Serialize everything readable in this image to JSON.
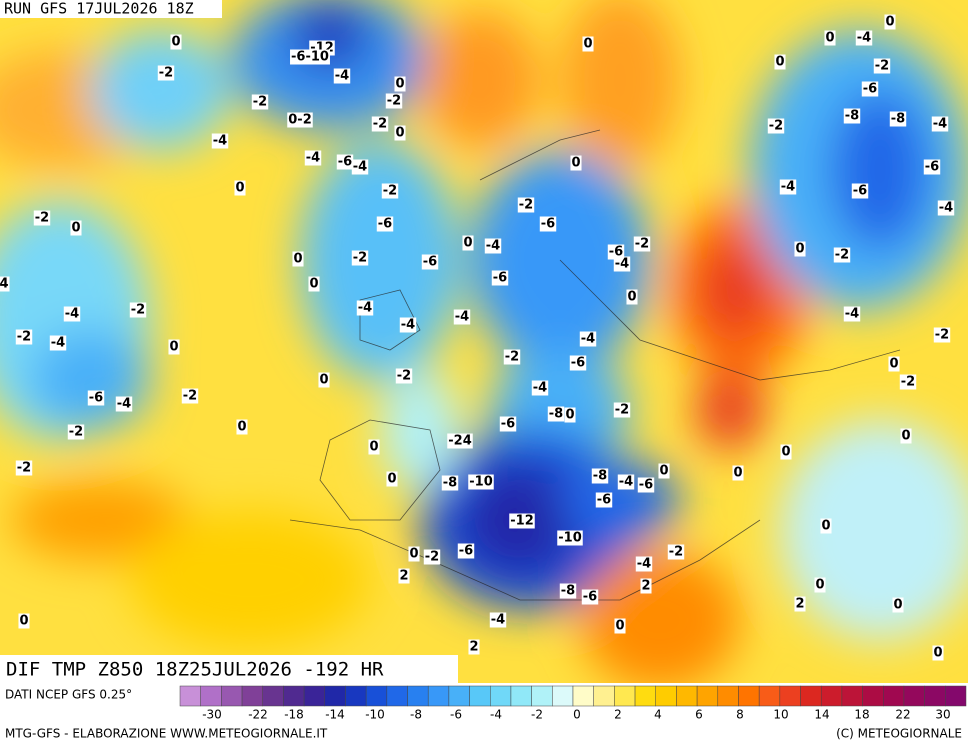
{
  "header": {
    "run": "RUN GFS 17JUL2026 18Z"
  },
  "field_label": "DIF TMP Z850 18Z25JUL2026 -192 HR",
  "source": "DATI NCEP GFS 0.25°",
  "footer": {
    "left": "MTG-GFS - ELABORAZIONE WWW.METEOGIORNALE.IT",
    "right": "(C) METEOGIORNALE"
  },
  "colorbar": {
    "colors": [
      "#c890d8",
      "#b070c8",
      "#9858b0",
      "#804098",
      "#683490",
      "#502a90",
      "#3a2498",
      "#2028a8",
      "#1838c0",
      "#1850d8",
      "#2068e8",
      "#2880f0",
      "#3898f8",
      "#48b0f8",
      "#58c8f8",
      "#70d8f8",
      "#90e8f8",
      "#b0f2f8",
      "#dcfafa",
      "#fffcc8",
      "#fff090",
      "#ffe850",
      "#ffdc10",
      "#ffcc00",
      "#ffb800",
      "#ffa400",
      "#ff8c00",
      "#ff7400",
      "#f85c18",
      "#ec4020",
      "#dc2820",
      "#cc1c2c",
      "#bc1438",
      "#ac0c44",
      "#a00850",
      "#94085c",
      "#8c0864",
      "#84086c"
    ],
    "labels": [
      "-30",
      "-22",
      "-18",
      "-14",
      "-10",
      "-8",
      "-6",
      "-4",
      "-2",
      "0",
      "2",
      "4",
      "6",
      "8",
      "10",
      "14",
      "18",
      "22",
      "30"
    ]
  },
  "contour_labels": [
    "0",
    "-2",
    "-12",
    "-6-10",
    "-4",
    "-2",
    "0-2",
    "-2",
    "0",
    "-2",
    "0",
    "-4",
    "-4",
    "-6",
    "-4",
    "0",
    "-2",
    "-2",
    "0",
    "-6",
    "0",
    "-2",
    "-6",
    "0",
    "4",
    "-2",
    "-4",
    "-4",
    "-4",
    "-4",
    "-2",
    "-4",
    "0",
    "0",
    "-2",
    "-6",
    "-4",
    "-2",
    "0",
    "-2",
    "0",
    "-2",
    "0",
    "-24",
    "-8",
    "-10",
    "0",
    "-2",
    "2",
    "-6",
    "-12",
    "-10",
    "-4",
    "2",
    "-8",
    "-6",
    "0",
    "2",
    "-4",
    "-2",
    "0",
    "0",
    "0",
    "0",
    "-4",
    "0",
    "-2",
    "-6",
    "-8",
    "-8",
    "-4",
    "-2",
    "-6",
    "-4",
    "-6",
    "-4",
    "0",
    "-2",
    "-6",
    "0",
    "-4",
    "-6",
    "-6",
    "-2",
    "-4",
    "0",
    "0",
    "-2",
    "-4",
    "-2",
    "-4",
    "-2",
    "-6",
    "-4",
    "0",
    "-2",
    "-8",
    "0",
    "-2",
    "-6",
    "0",
    "0",
    "0",
    "0",
    "-8",
    "-4",
    "-6",
    "-6",
    "0",
    "0",
    "2",
    "0",
    "0"
  ]
}
